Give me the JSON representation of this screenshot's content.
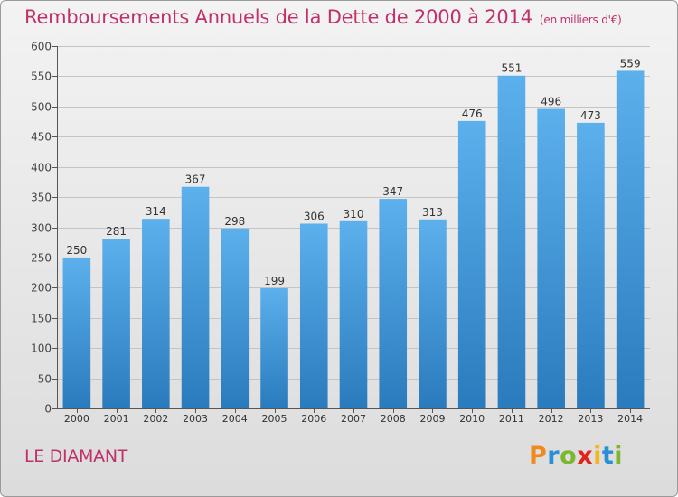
{
  "header": {
    "title": "Remboursements Annuels de la Dette de 2000 à 2014",
    "subtitle": "(en milliers d'€)"
  },
  "footer": {
    "place": "LE DIAMANT",
    "logo_letters": [
      "P",
      "r",
      "o",
      "x",
      "i",
      "t",
      "i"
    ],
    "logo_colors": [
      "#f08a1e",
      "#2b8fd6",
      "#7cb82f",
      "#e2231a",
      "#f3b61f",
      "#2b8fd6",
      "#7cb82f"
    ]
  },
  "chart_data": {
    "type": "bar",
    "title": "Remboursements Annuels de la Dette de 2000 à 2014",
    "ylabel": "en milliers d'€",
    "xlabel": "",
    "categories": [
      "2000",
      "2001",
      "2002",
      "2003",
      "2004",
      "2005",
      "2006",
      "2007",
      "2008",
      "2009",
      "2010",
      "2011",
      "2012",
      "2013",
      "2014"
    ],
    "values": [
      250,
      281,
      314,
      367,
      298,
      199,
      306,
      310,
      347,
      313,
      476,
      551,
      496,
      473,
      559
    ],
    "ylim": [
      0,
      600
    ],
    "yticks": [
      0,
      50,
      100,
      150,
      200,
      250,
      300,
      350,
      400,
      450,
      500,
      550,
      600
    ],
    "grid": true,
    "bar_color_top": "#5cb0ec",
    "bar_color_bottom": "#2a7bbd"
  }
}
